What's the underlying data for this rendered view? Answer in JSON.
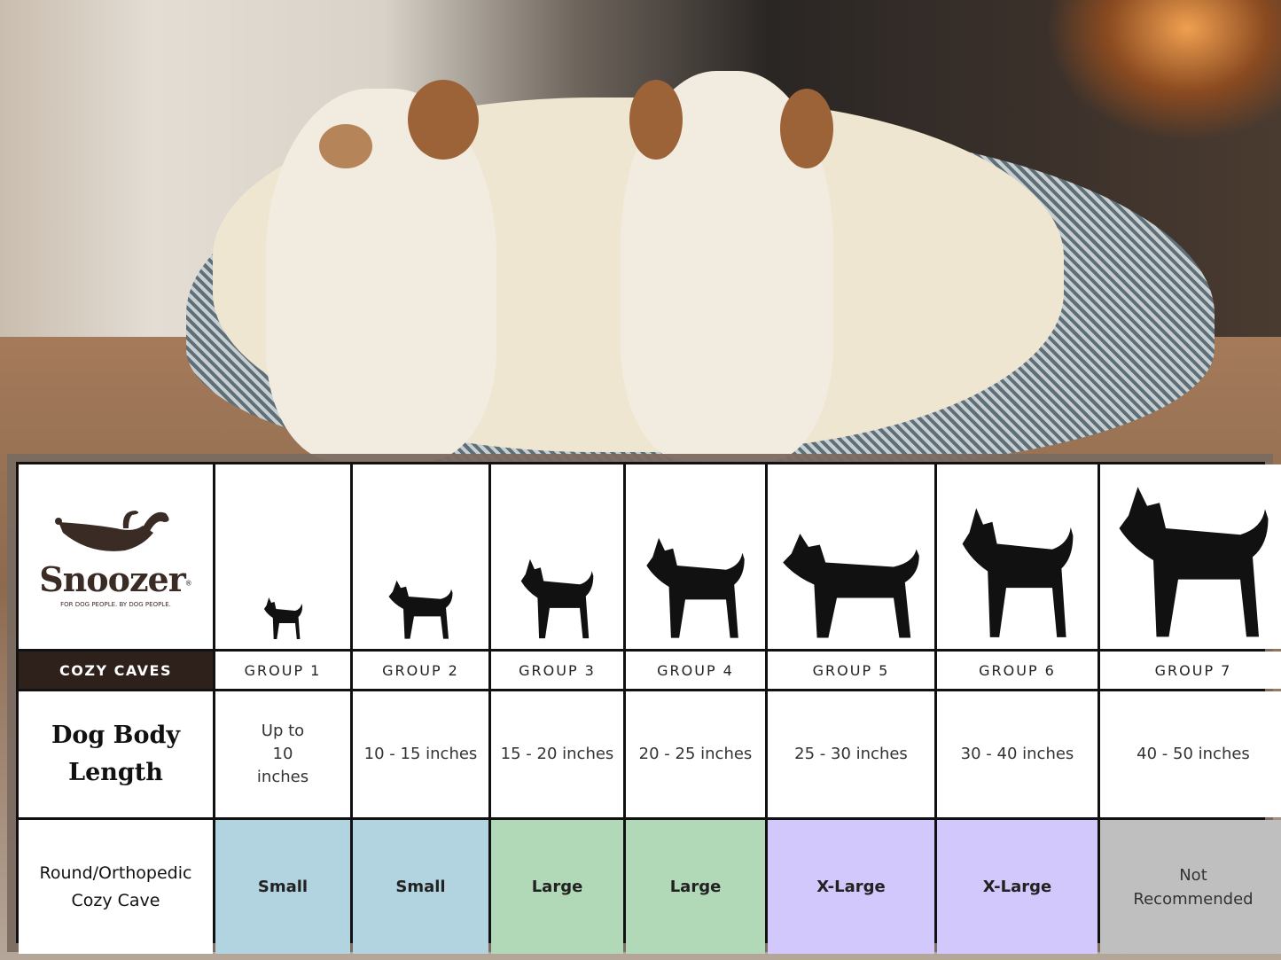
{
  "brand": {
    "name": "Snoozer",
    "registered": "®",
    "tagline": "FOR DOG PEOPLE. BY DOG PEOPLE.",
    "category": "COZY CAVES"
  },
  "colors": {
    "brand": "#2e211c",
    "small": "#b2d3e0",
    "large": "#b2d9b7",
    "xlarge": "#d3c8fb",
    "not_recommended": "#bfbfbf"
  },
  "row_headers": {
    "length": "Dog Body Length",
    "product": "Round/Orthopedic Cozy Cave"
  },
  "groups": [
    {
      "label": "GROUP 1",
      "icon": "chihuahua-silhouette-icon",
      "length": "Up to 10 inches",
      "size": "Small",
      "color": "#b2d3e0"
    },
    {
      "label": "GROUP 2",
      "icon": "pomeranian-silhouette-icon",
      "length": "10 - 15 inches",
      "size": "Small",
      "color": "#b2d3e0"
    },
    {
      "label": "GROUP 3",
      "icon": "boston-terrier-silhouette-icon",
      "length": "15 - 20 inches",
      "size": "Large",
      "color": "#b2d9b7"
    },
    {
      "label": "GROUP 4",
      "icon": "shiba-silhouette-icon",
      "length": "20 - 25 inches",
      "size": "Large",
      "color": "#b2d9b7"
    },
    {
      "label": "GROUP 5",
      "icon": "golden-retriever-silhouette-icon",
      "length": "25 - 30 inches",
      "size": "X-Large",
      "color": "#d3c8fb"
    },
    {
      "label": "GROUP 6",
      "icon": "doberman-silhouette-icon",
      "length": "30 - 40 inches",
      "size": "X-Large",
      "color": "#d3c8fb"
    },
    {
      "label": "GROUP 7",
      "icon": "great-dane-silhouette-icon",
      "length": "40 - 50 inches",
      "size": "Not Recommended",
      "color": "#bfbfbf"
    }
  ]
}
